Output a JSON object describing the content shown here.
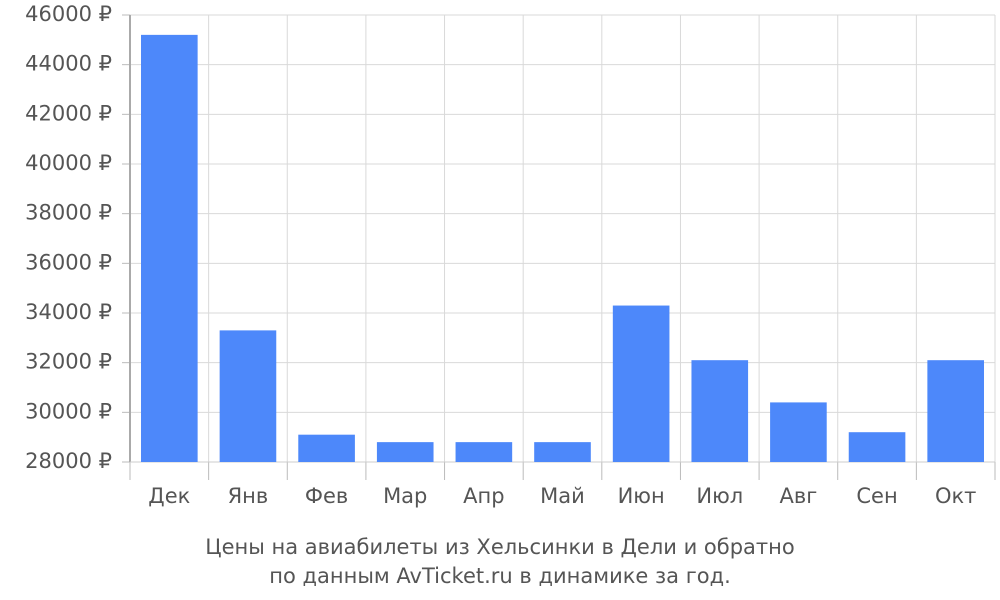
{
  "chart_data": {
    "type": "bar",
    "caption": [
      "Цены на авиабилеты из Хельсинки в Дели и обратно",
      "по данным AvTicket.ru в динамике за год."
    ],
    "categories": [
      "Дек",
      "Янв",
      "Фев",
      "Мар",
      "Апр",
      "Май",
      "Июн",
      "Июл",
      "Авг",
      "Сен",
      "Окт"
    ],
    "values": [
      45200,
      33300,
      29100,
      28800,
      28800,
      28800,
      34300,
      32100,
      30400,
      29200,
      32100
    ],
    "color": "#4d88fa",
    "ylim": [
      28000,
      46000
    ],
    "yticks": [
      {
        "value": 28000,
        "label": "28000 ₽"
      },
      {
        "value": 30000,
        "label": "30000 ₽"
      },
      {
        "value": 32000,
        "label": "32000 ₽"
      },
      {
        "value": 34000,
        "label": "34000 ₽"
      },
      {
        "value": 36000,
        "label": "36000 ₽"
      },
      {
        "value": 38000,
        "label": "38000 ₽"
      },
      {
        "value": 40000,
        "label": "40000 ₽"
      },
      {
        "value": 42000,
        "label": "42000 ₽"
      },
      {
        "value": 44000,
        "label": "44000 ₽"
      },
      {
        "value": 46000,
        "label": "46000 ₽"
      }
    ],
    "grid": true
  }
}
